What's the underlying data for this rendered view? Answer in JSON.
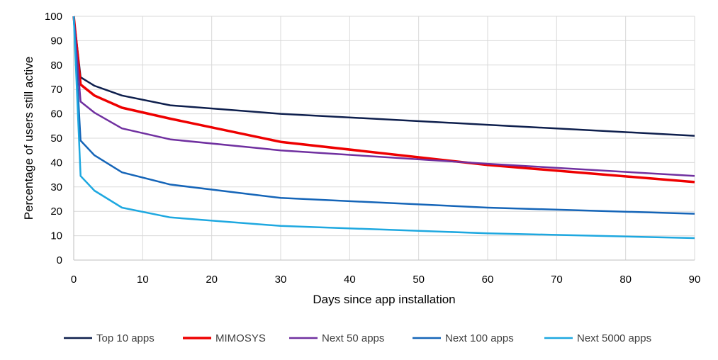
{
  "chart_data": {
    "type": "line",
    "xlabel": "Days since app installation",
    "ylabel": "Percentage of users still active",
    "xlim": [
      0,
      90
    ],
    "ylim": [
      0,
      100
    ],
    "x_ticks": [
      0,
      10,
      20,
      30,
      40,
      50,
      60,
      70,
      80,
      90
    ],
    "y_ticks": [
      0,
      10,
      20,
      30,
      40,
      50,
      60,
      70,
      80,
      90,
      100
    ],
    "grid": "vertical and horizontal",
    "legend_position": "bottom",
    "x": [
      0,
      1,
      3,
      7,
      14,
      30,
      60,
      90
    ],
    "series": [
      {
        "name": "Top 10 apps",
        "color": "#0e1f4d",
        "values": [
          100,
          75,
          71.5,
          67.5,
          63.5,
          60,
          55.5,
          51
        ]
      },
      {
        "name": "MIMOSYS",
        "color": "#ee0000",
        "values": [
          100,
          72,
          67.5,
          62.5,
          58,
          48.5,
          39,
          32
        ]
      },
      {
        "name": "Next 50 apps",
        "color": "#7030a0",
        "values": [
          100,
          65,
          60.5,
          54,
          49.5,
          45,
          39.5,
          34.5
        ]
      },
      {
        "name": "Next 100 apps",
        "color": "#1565b8",
        "values": [
          100,
          49,
          43,
          36,
          31,
          25.5,
          21.5,
          19
        ]
      },
      {
        "name": "Next 5000 apps",
        "color": "#1ea8e0",
        "values": [
          100,
          34.5,
          28.5,
          21.5,
          17.5,
          14,
          11,
          9
        ]
      }
    ]
  }
}
